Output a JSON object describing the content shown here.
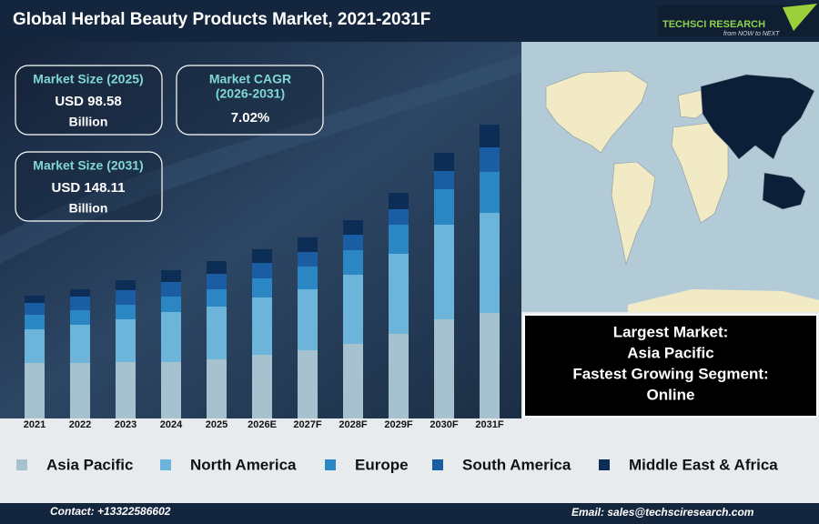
{
  "header": {
    "title": "Global Herbal Beauty Products Market, 2021-2031F",
    "logo": "TECHSCI RESEARCH",
    "tagline": "from NOW to NEXT"
  },
  "info_boxes": [
    {
      "label": "Market Size (2025)",
      "value": "USD 98.58",
      "unit": "Billion"
    },
    {
      "label": "Market CAGR",
      "period": "(2026-2031)",
      "value": "7.02%"
    },
    {
      "label": "Market Size (2031)",
      "value": "USD 148.11",
      "unit": "Billion"
    }
  ],
  "highlights": [
    "Largest Market:",
    "Asia Pacific",
    "Fastest Growing Segment:",
    "Online"
  ],
  "chart_data": {
    "type": "stacked-bar",
    "categories": [
      "2021",
      "2022",
      "2023",
      "2024",
      "2025",
      "2026E",
      "2027F",
      "2028F",
      "2029F",
      "2030F",
      "2031F"
    ],
    "ylim": [
      0,
      410
    ],
    "series": [
      {
        "name": "Asia Pacific",
        "color": "#a7c2cf",
        "values": [
          61,
          61,
          62,
          62,
          65,
          70,
          75,
          82,
          93,
          109,
          116
        ]
      },
      {
        "name": "North America",
        "color": "#6cb4da",
        "values": [
          37,
          42,
          47,
          55,
          58,
          63,
          67,
          76,
          88,
          104,
          110
        ]
      },
      {
        "name": "Europe",
        "color": "#2b86c4",
        "values": [
          16,
          16,
          16,
          17,
          19,
          21,
          25,
          27,
          32,
          39,
          45
        ]
      },
      {
        "name": "South America",
        "color": "#1a5da2",
        "values": [
          13,
          15,
          16,
          16,
          17,
          17,
          16,
          17,
          17,
          20,
          27
        ]
      },
      {
        "name": "Middle East & Africa",
        "color": "#0c2d55",
        "values": [
          8,
          8,
          11,
          13,
          14,
          15,
          16,
          16,
          18,
          20,
          25
        ]
      }
    ]
  },
  "footer": {
    "contact": "Contact: +13322586602",
    "email": "Email: sales@techsciresearch.com"
  }
}
